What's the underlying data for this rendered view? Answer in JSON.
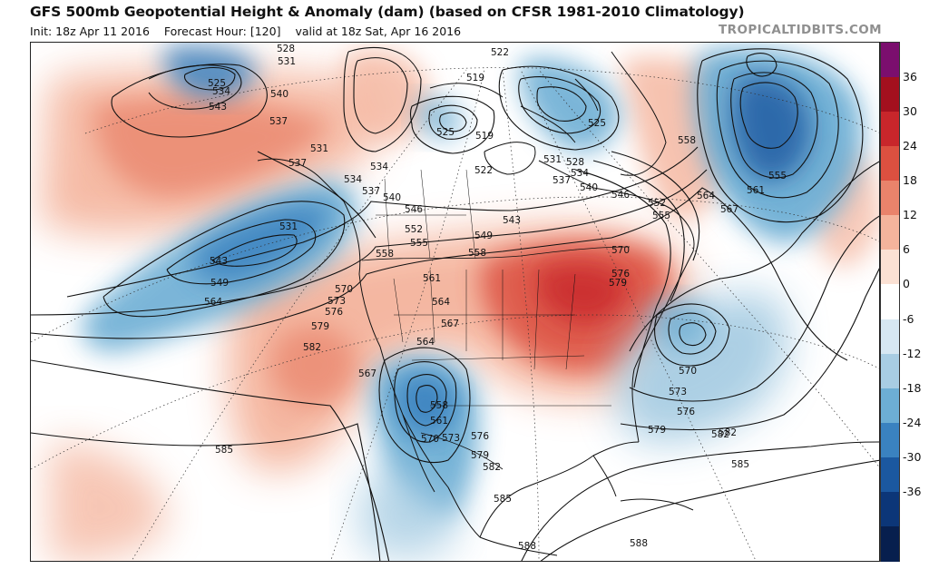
{
  "header": {
    "title": "GFS 500mb Geopotential Height & Anomaly (dam) (based on CFSR 1981-2010 Climatology)",
    "init": "Init: 18z Apr 11 2016",
    "forecast_hour": "Forecast Hour: [120]",
    "valid": "valid at 18z Sat, Apr 16 2016",
    "watermark": "TROPICALTIDBITS.COM"
  },
  "colorbar": {
    "labels": [
      "36",
      "30",
      "24",
      "18",
      "12",
      "6",
      "0",
      "-6",
      "-12",
      "-18",
      "-24",
      "-30",
      "-36"
    ],
    "colors": [
      "#7b0e6e",
      "#a3101e",
      "#c8262b",
      "#dc5040",
      "#e9836b",
      "#f4b49c",
      "#fbe1d4",
      "#ffffff",
      "#d6e7f2",
      "#a8cde3",
      "#6daed4",
      "#3a82c0",
      "#1b58a0",
      "#0c3678",
      "#071f4e"
    ]
  },
  "map": {
    "anomaly_areas": [
      {
        "name": "warm-anomaly-northeast",
        "sign": "positive",
        "color": "#c8262b"
      },
      {
        "name": "warm-anomaly-plains",
        "sign": "positive",
        "color": "#e9836b"
      },
      {
        "name": "warm-anomaly-alaska",
        "sign": "positive",
        "color": "#f4b49c"
      },
      {
        "name": "cold-anomaly-gulf-of-alaska",
        "sign": "negative",
        "color": "#3a82c0"
      },
      {
        "name": "cold-anomaly-southwest",
        "sign": "negative",
        "color": "#3a82c0"
      },
      {
        "name": "cold-anomaly-atlantic",
        "sign": "negative",
        "color": "#6daed4"
      },
      {
        "name": "cold-anomaly-greenland",
        "sign": "negative",
        "color": "#1b58a0"
      },
      {
        "name": "cold-anomaly-baffin",
        "sign": "negative",
        "color": "#6daed4"
      }
    ],
    "contour_labels": [
      {
        "text": "528"
      },
      {
        "text": "531"
      },
      {
        "text": "525"
      },
      {
        "text": "534"
      },
      {
        "text": "540"
      },
      {
        "text": "543"
      },
      {
        "text": "537"
      },
      {
        "text": "531"
      },
      {
        "text": "537"
      },
      {
        "text": "534"
      },
      {
        "text": "534"
      },
      {
        "text": "537"
      },
      {
        "text": "540"
      },
      {
        "text": "531"
      },
      {
        "text": "546"
      },
      {
        "text": "543"
      },
      {
        "text": "549"
      },
      {
        "text": "552"
      },
      {
        "text": "555"
      },
      {
        "text": "558"
      },
      {
        "text": "549"
      },
      {
        "text": "558"
      },
      {
        "text": "564"
      },
      {
        "text": "570"
      },
      {
        "text": "573"
      },
      {
        "text": "576"
      },
      {
        "text": "579"
      },
      {
        "text": "582"
      },
      {
        "text": "561"
      },
      {
        "text": "564"
      },
      {
        "text": "567"
      },
      {
        "text": "564"
      },
      {
        "text": "567"
      },
      {
        "text": "558"
      },
      {
        "text": "561"
      },
      {
        "text": "570"
      },
      {
        "text": "573"
      },
      {
        "text": "576"
      },
      {
        "text": "579"
      },
      {
        "text": "582"
      },
      {
        "text": "585"
      },
      {
        "text": "585"
      },
      {
        "text": "588"
      },
      {
        "text": "588"
      },
      {
        "text": "582"
      },
      {
        "text": "522"
      },
      {
        "text": "519"
      },
      {
        "text": "525"
      },
      {
        "text": "519"
      },
      {
        "text": "522"
      },
      {
        "text": "525"
      },
      {
        "text": "531"
      },
      {
        "text": "528"
      },
      {
        "text": "534"
      },
      {
        "text": "537"
      },
      {
        "text": "540"
      },
      {
        "text": "543"
      },
      {
        "text": "546"
      },
      {
        "text": "552"
      },
      {
        "text": "555"
      },
      {
        "text": "558"
      },
      {
        "text": "564"
      },
      {
        "text": "567"
      },
      {
        "text": "561"
      },
      {
        "text": "555"
      },
      {
        "text": "570"
      },
      {
        "text": "576"
      },
      {
        "text": "579"
      },
      {
        "text": "570"
      },
      {
        "text": "573"
      },
      {
        "text": "576"
      },
      {
        "text": "579"
      },
      {
        "text": "582"
      },
      {
        "text": "585"
      }
    ]
  }
}
